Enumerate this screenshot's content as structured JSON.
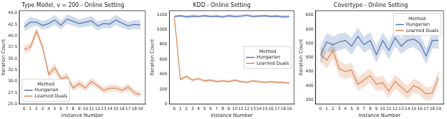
{
  "chart_data": [
    {
      "type": "line",
      "title": "Type Model, v = 200 - Online Setting",
      "x_label": "Instance Number",
      "y_label": "Iteration Count",
      "x": [
        0,
        1,
        2,
        3,
        4,
        5,
        6,
        7,
        8,
        9,
        10,
        11,
        12,
        13,
        14,
        15,
        16,
        17,
        18,
        19
      ],
      "xlim": [
        -0.8,
        19.8
      ],
      "xticks": [
        0,
        1,
        2,
        3,
        4,
        5,
        6,
        7,
        8,
        9,
        10,
        11,
        12,
        13,
        14,
        15,
        16,
        17,
        18,
        19
      ],
      "ylim": [
        25,
        45.5
      ],
      "yticks": [
        {
          "value": 25,
          "label": "25.0"
        },
        {
          "value": 27.5,
          "label": "27.5"
        },
        {
          "value": 30,
          "label": "30.0"
        },
        {
          "value": 32.5,
          "label": "32.5"
        },
        {
          "value": 35,
          "label": "35.0"
        },
        {
          "value": 37.5,
          "label": "37.5"
        },
        {
          "value": 40,
          "label": "40.0"
        },
        {
          "value": 42.5,
          "label": "42.5"
        },
        {
          "value": 45,
          "label": "45.0"
        }
      ],
      "grid": false,
      "legend": "lower left",
      "legend_title": "Method",
      "series": [
        {
          "name": "Hungarian",
          "color": "#4c72b0",
          "values": [
            42.0,
            43.0,
            43.0,
            42.3,
            42.7,
            43.5,
            42.3,
            43.7,
            43.2,
            42.7,
            43.0,
            43.3,
            42.2,
            42.7,
            42.6,
            43.5,
            42.8,
            42.2,
            42.5,
            42.4
          ],
          "error": [
            1.0,
            1.2,
            0.8,
            0.9,
            1.0,
            1.1,
            0.9,
            1.0,
            1.0,
            0.9,
            1.0,
            1.1,
            1.0,
            0.9,
            1.0,
            1.1,
            1.0,
            0.9,
            1.0,
            1.0
          ]
        },
        {
          "name": "Learned Duals",
          "color": "#dd8452",
          "values": [
            37.0,
            37.5,
            41.0,
            37.5,
            31.5,
            33.0,
            30.5,
            31.0,
            28.5,
            29.5,
            28.5,
            30.0,
            29.0,
            28.0,
            28.5,
            28.5,
            28.0,
            28.7,
            27.5,
            27.0
          ],
          "error": [
            0.8,
            0.9,
            0.9,
            0.9,
            0.8,
            0.9,
            0.7,
            0.8,
            0.7,
            0.8,
            0.7,
            0.8,
            0.7,
            0.7,
            0.8,
            0.7,
            0.7,
            0.8,
            0.7,
            0.6
          ]
        }
      ]
    },
    {
      "type": "line",
      "title": "KDD - Online Setting",
      "x_label": "Instance Number",
      "y_label": "Iteration Count",
      "x": [
        0,
        1,
        2,
        3,
        4,
        5,
        6,
        7,
        8,
        9,
        10,
        11,
        12,
        13,
        14,
        15,
        16,
        17,
        18,
        19
      ],
      "xlim": [
        -0.8,
        19.8
      ],
      "xticks": [
        0,
        1,
        2,
        3,
        4,
        5,
        6,
        7,
        8,
        9,
        10,
        11,
        12,
        13,
        14,
        15,
        16,
        17,
        18,
        19
      ],
      "ylim": [
        0,
        1250
      ],
      "yticks": [
        0,
        200,
        400,
        600,
        800,
        1000,
        1200
      ],
      "grid": false,
      "legend": "center right",
      "legend_title": "Method",
      "series": [
        {
          "name": "Hungarian",
          "color": "#4c72b0",
          "values": [
            1175,
            1185,
            1170,
            1180,
            1175,
            1185,
            1175,
            1180,
            1170,
            1185,
            1175,
            1180,
            1190,
            1175,
            1180,
            1185,
            1175,
            1180,
            1170,
            1175
          ],
          "error": [
            20,
            18,
            20,
            22,
            18,
            20,
            20,
            18,
            20,
            22,
            20,
            18,
            20,
            22,
            20,
            18,
            20,
            20,
            22,
            20
          ]
        },
        {
          "name": "Learned Duals",
          "color": "#dd8452",
          "values": [
            1170,
            330,
            370,
            320,
            340,
            310,
            320,
            300,
            310,
            300,
            320,
            300,
            290,
            310,
            300,
            290,
            300,
            290,
            290,
            280
          ],
          "error": [
            25,
            20,
            22,
            20,
            18,
            18,
            18,
            16,
            18,
            16,
            18,
            16,
            16,
            16,
            16,
            15,
            15,
            15,
            15,
            14
          ]
        }
      ]
    },
    {
      "type": "line",
      "title": "Covertype - Online Setting",
      "x_label": "Instance Number",
      "y_label": "Iteration Count",
      "x": [
        0,
        1,
        2,
        3,
        4,
        5,
        6,
        7,
        8,
        9,
        10,
        11,
        12,
        13,
        14,
        15,
        16,
        17,
        18,
        19
      ],
      "xlim": [
        -0.8,
        19.8
      ],
      "xticks": [
        0,
        1,
        2,
        3,
        4,
        5,
        6,
        7,
        8,
        9,
        10,
        11,
        12,
        13,
        14,
        15,
        16,
        17,
        18,
        19
      ],
      "ylim": [
        335,
        665
      ],
      "yticks": [
        350,
        400,
        450,
        500,
        550,
        600,
        650
      ],
      "grid": false,
      "legend": "upper right",
      "legend_title": "Method",
      "series": [
        {
          "name": "Hungarian",
          "color": "#4c72b0",
          "values": [
            510,
            555,
            545,
            555,
            560,
            540,
            575,
            545,
            560,
            510,
            560,
            525,
            570,
            540,
            560,
            565,
            550,
            505,
            560,
            560
          ],
          "error": [
            30,
            32,
            28,
            30,
            28,
            30,
            30,
            28,
            30,
            30,
            28,
            30,
            30,
            28,
            30,
            28,
            30,
            30,
            28,
            30
          ]
        },
        {
          "name": "Learned Duals",
          "color": "#dd8452",
          "values": [
            510,
            490,
            525,
            460,
            450,
            455,
            405,
            420,
            435,
            405,
            410,
            380,
            415,
            395,
            375,
            400,
            390,
            370,
            375,
            430
          ],
          "error": [
            28,
            30,
            30,
            28,
            25,
            26,
            24,
            25,
            25,
            24,
            25,
            24,
            25,
            24,
            24,
            24,
            24,
            24,
            24,
            26
          ]
        }
      ]
    }
  ]
}
